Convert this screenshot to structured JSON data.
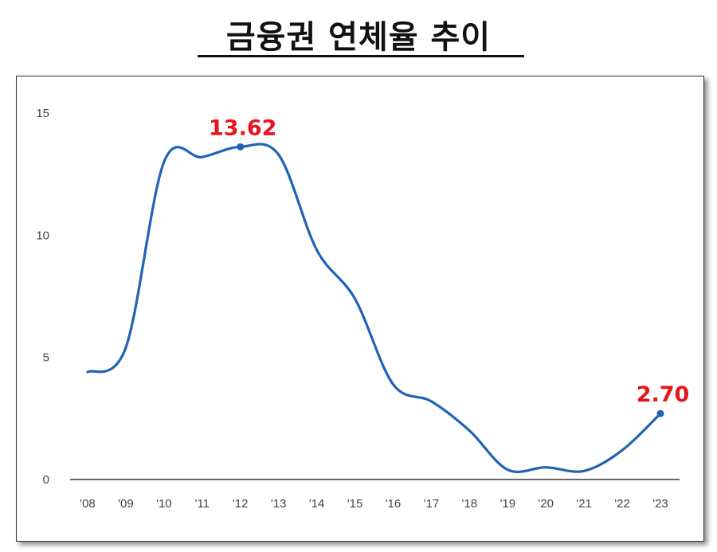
{
  "title": "금융권 연체율 추이",
  "colors": {
    "line": "#1f63b5",
    "label": "#e8131b",
    "axis": "#333333"
  },
  "chart_data": {
    "type": "line",
    "title": "금융권 연체율 추이",
    "xlabel": "",
    "ylabel": "",
    "x": [
      "'08",
      "'09",
      "'10",
      "'11",
      "'12",
      "'13",
      "'14",
      "'15",
      "'16",
      "'17",
      "'18",
      "'19",
      "'20",
      "'21",
      "'22",
      "'23"
    ],
    "values": [
      4.4,
      5.4,
      13.0,
      13.2,
      13.62,
      13.3,
      9.4,
      7.4,
      3.9,
      3.2,
      2.0,
      0.4,
      0.5,
      0.35,
      1.2,
      2.7
    ],
    "yticks": [
      0,
      5,
      10,
      15
    ],
    "ylim": [
      0,
      15
    ],
    "grid": false,
    "data_labels": [
      {
        "index": 4,
        "text": "13.62"
      },
      {
        "index": 15,
        "text": "2.70"
      }
    ]
  }
}
